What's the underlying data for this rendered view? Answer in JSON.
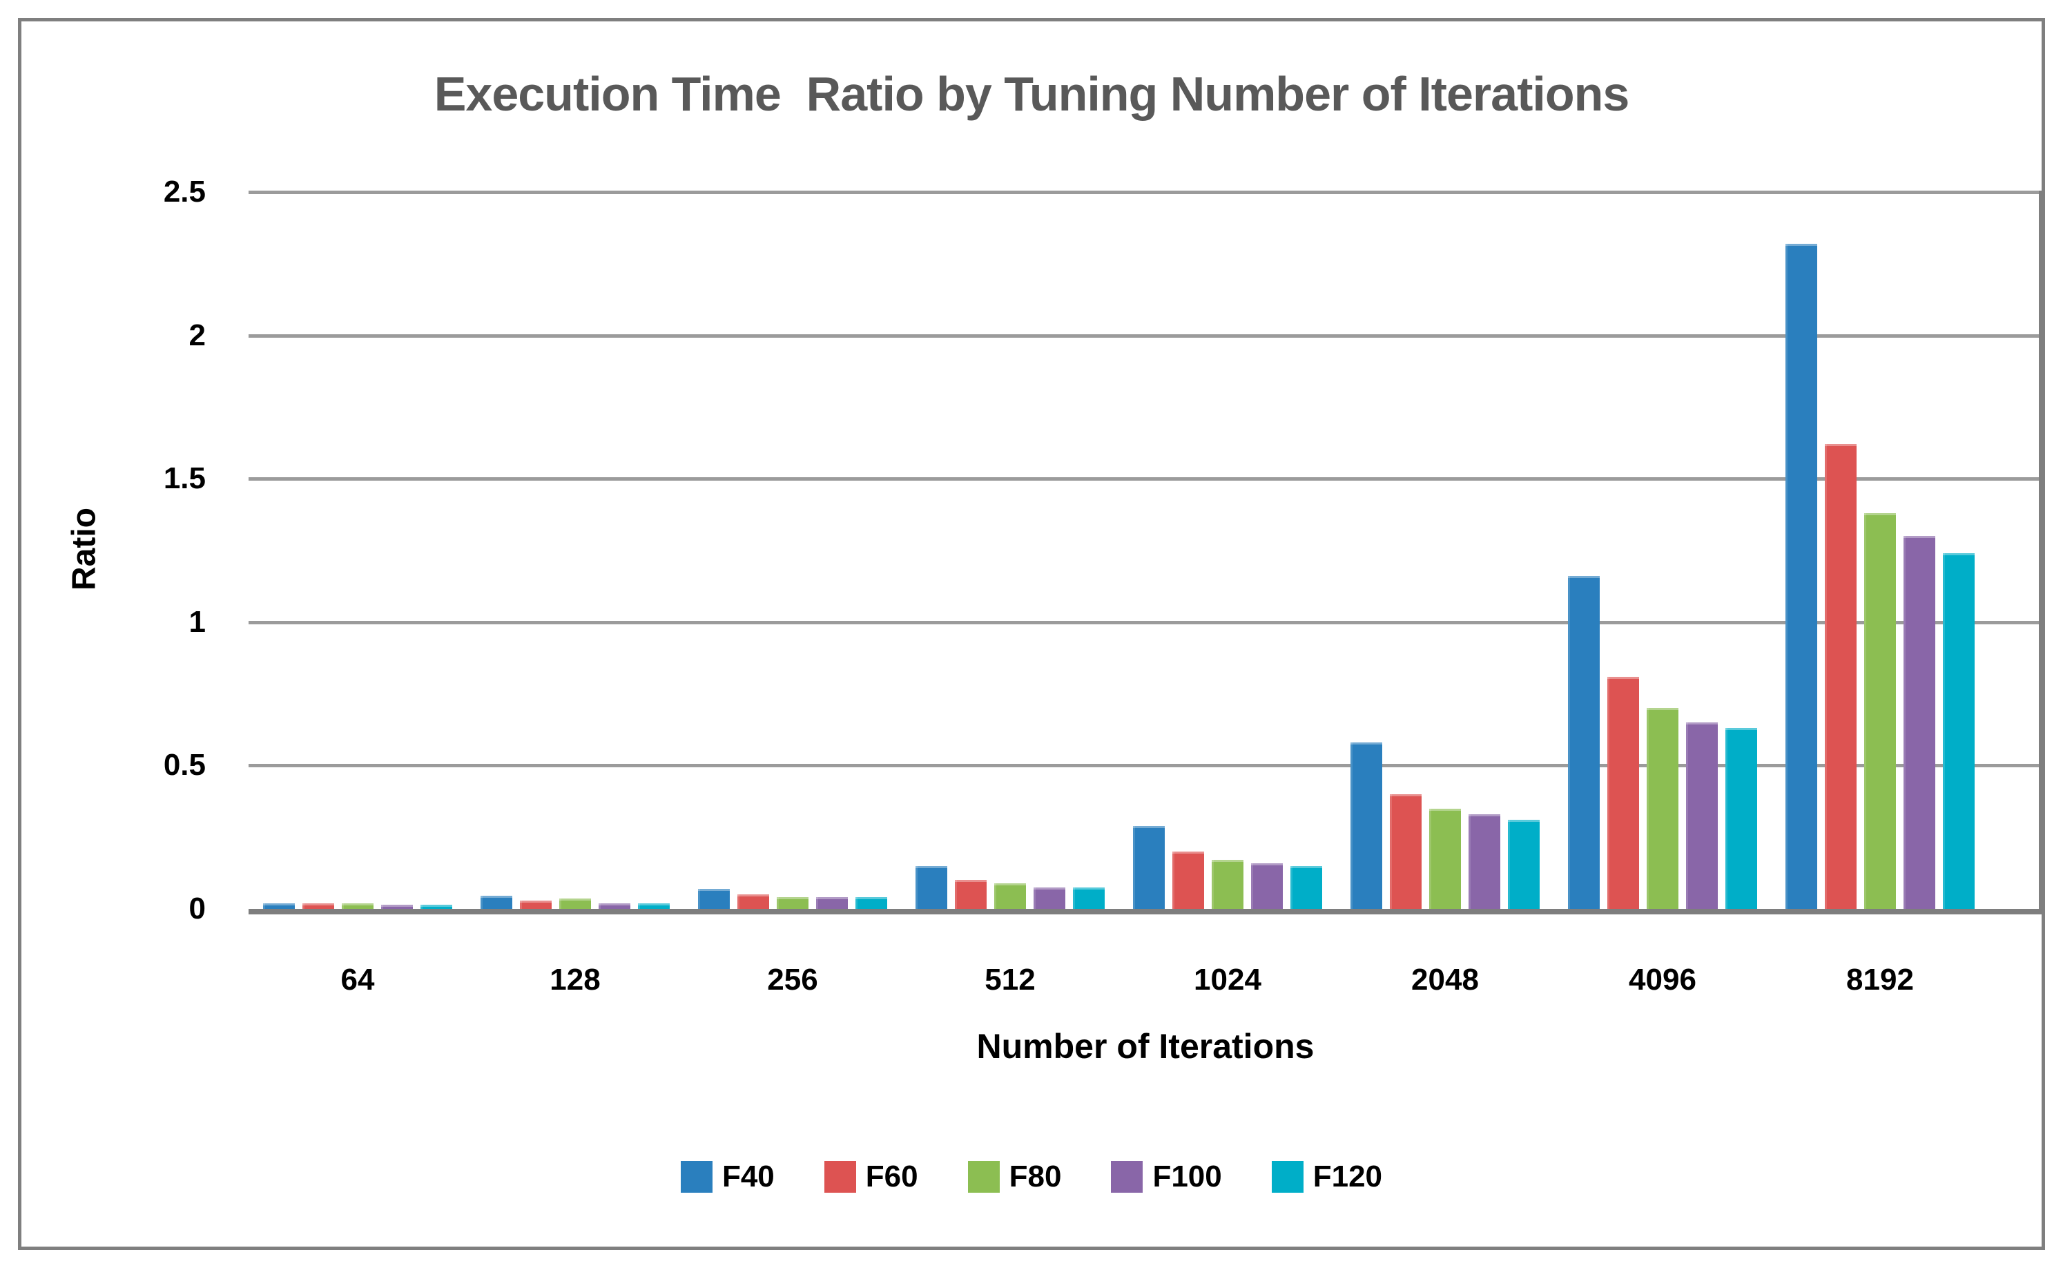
{
  "title": "Execution Time  Ratio by Tuning Number of Iterations",
  "title_color": "#595959",
  "grid_color": "#9b9b9b",
  "axis_line_color": "#7e7e7e",
  "border_color": "#7f7f7f",
  "chart_data": {
    "type": "bar",
    "title": "Execution Time  Ratio by Tuning Number of Iterations",
    "xlabel": "Number of Iterations",
    "ylabel": "Ratio",
    "ylim": [
      0,
      2.5
    ],
    "ytick_interval": 0.5,
    "ytick_labels": [
      "0",
      "0.5",
      "1",
      "1.5",
      "2",
      "2.5"
    ],
    "grid": true,
    "legend_position": "bottom",
    "categories": [
      "64",
      "128",
      "256",
      "512",
      "1024",
      "2048",
      "4096",
      "8192"
    ],
    "series": [
      {
        "name": "F40",
        "color": "#2a7fbe",
        "values": [
          0.02,
          0.045,
          0.07,
          0.15,
          0.29,
          0.58,
          1.16,
          2.32
        ]
      },
      {
        "name": "F60",
        "color": "#dd5352",
        "values": [
          0.02,
          0.03,
          0.05,
          0.1,
          0.2,
          0.4,
          0.81,
          1.62
        ]
      },
      {
        "name": "F80",
        "color": "#8cbe52",
        "values": [
          0.02,
          0.035,
          0.04,
          0.09,
          0.17,
          0.35,
          0.7,
          1.38
        ]
      },
      {
        "name": "F100",
        "color": "#8966a8",
        "values": [
          0.015,
          0.02,
          0.04,
          0.075,
          0.16,
          0.33,
          0.65,
          1.3
        ]
      },
      {
        "name": "F120",
        "color": "#00aec8",
        "values": [
          0.015,
          0.02,
          0.04,
          0.075,
          0.15,
          0.31,
          0.63,
          1.24
        ]
      }
    ]
  }
}
